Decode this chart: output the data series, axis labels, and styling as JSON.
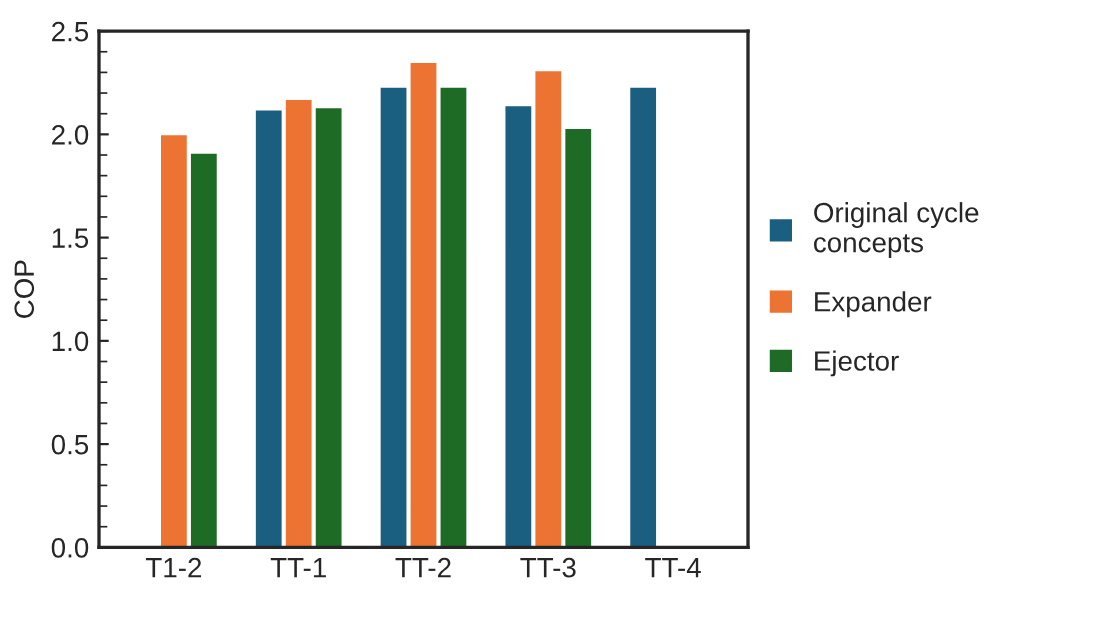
{
  "chart_data": {
    "type": "bar",
    "ylabel": "COP",
    "categories": [
      "T1-2",
      "TT-1",
      "TT-2",
      "TT-3",
      "TT-4"
    ],
    "series": [
      {
        "name": "Original cycle concepts",
        "color": "#1a5e80",
        "values": [
          null,
          2.12,
          2.23,
          2.14,
          2.23
        ]
      },
      {
        "name": "Expander",
        "color": "#ec7332",
        "values": [
          2.0,
          2.17,
          2.35,
          2.31,
          null
        ]
      },
      {
        "name": "Ejector",
        "color": "#1e6b25",
        "values": [
          1.91,
          2.13,
          2.23,
          2.03,
          null
        ]
      }
    ],
    "ylim": [
      0,
      2.5
    ],
    "yticks": [
      {
        "value": 0,
        "label": "0.0"
      },
      {
        "value": 0.5,
        "label": "0.5"
      },
      {
        "value": 1,
        "label": "1.0"
      },
      {
        "value": 1.5,
        "label": "1.5"
      },
      {
        "value": 2,
        "label": "2.0"
      },
      {
        "value": 2.5,
        "label": "2.5"
      }
    ],
    "grid": false,
    "legend": "right"
  }
}
